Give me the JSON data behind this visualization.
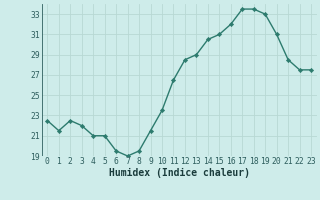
{
  "x": [
    0,
    1,
    2,
    3,
    4,
    5,
    6,
    7,
    8,
    9,
    10,
    11,
    12,
    13,
    14,
    15,
    16,
    17,
    18,
    19,
    20,
    21,
    22,
    23
  ],
  "y": [
    22.5,
    21.5,
    22.5,
    22.0,
    21.0,
    21.0,
    19.5,
    19.0,
    19.5,
    21.5,
    23.5,
    26.5,
    28.5,
    29.0,
    30.5,
    31.0,
    32.0,
    33.5,
    33.5,
    33.0,
    31.0,
    28.5,
    27.5,
    27.5
  ],
  "line_color": "#2d7b6e",
  "marker": "D",
  "marker_size": 2.2,
  "bg_color": "#ceecea",
  "grid_color": "#b8d8d4",
  "tick_label_color": "#2e5e5e",
  "xlabel": "Humidex (Indice chaleur)",
  "xlabel_color": "#1a3c3c",
  "ylim": [
    19,
    34
  ],
  "xlim": [
    -0.5,
    23.5
  ],
  "yticks": [
    19,
    21,
    23,
    25,
    27,
    29,
    31,
    33
  ],
  "xticks": [
    0,
    1,
    2,
    3,
    4,
    5,
    6,
    7,
    8,
    9,
    10,
    11,
    12,
    13,
    14,
    15,
    16,
    17,
    18,
    19,
    20,
    21,
    22,
    23
  ],
  "line_width": 1.0,
  "font_size_tick": 5.8,
  "font_size_label": 7.0
}
